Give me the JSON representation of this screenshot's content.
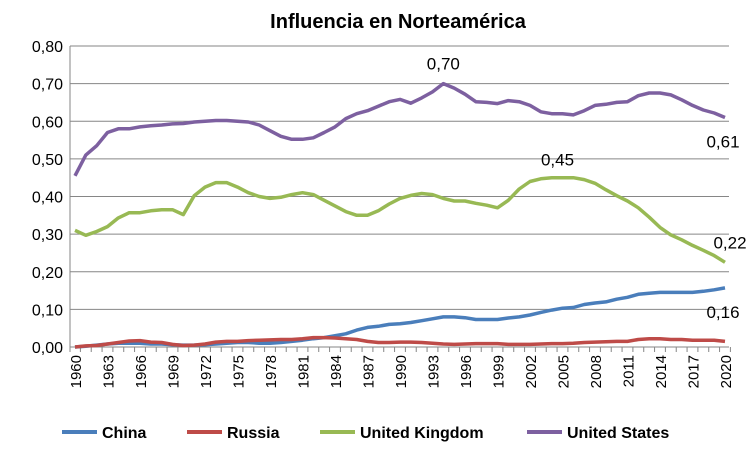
{
  "chart_data": {
    "type": "line",
    "title": "Influencia en Norteamérica",
    "xlabel": "",
    "ylabel": "",
    "ylim": [
      0,
      0.8
    ],
    "yticks": [
      "0,00",
      "0,10",
      "0,20",
      "0,30",
      "0,40",
      "0,50",
      "0,60",
      "0,70",
      "0,80"
    ],
    "xlim": [
      1960,
      2020
    ],
    "xtick_step": 3,
    "grid": true,
    "legend": "bottom",
    "x": [
      1960,
      1961,
      1962,
      1963,
      1964,
      1965,
      1966,
      1967,
      1968,
      1969,
      1970,
      1971,
      1972,
      1973,
      1974,
      1975,
      1976,
      1977,
      1978,
      1979,
      1980,
      1981,
      1982,
      1983,
      1984,
      1985,
      1986,
      1987,
      1988,
      1989,
      1990,
      1991,
      1992,
      1993,
      1994,
      1995,
      1996,
      1997,
      1998,
      1999,
      2000,
      2001,
      2002,
      2003,
      2004,
      2005,
      2006,
      2007,
      2008,
      2009,
      2010,
      2011,
      2012,
      2013,
      2014,
      2015,
      2016,
      2017,
      2018,
      2019,
      2020
    ],
    "series": [
      {
        "name": "China",
        "color": "#4a7ebb",
        "values": [
          0,
          0.002,
          0.005,
          0.008,
          0.01,
          0.01,
          0.01,
          0.008,
          0.008,
          0.006,
          0.005,
          0.005,
          0.006,
          0.008,
          0.01,
          0.012,
          0.012,
          0.01,
          0.01,
          0.012,
          0.015,
          0.018,
          0.022,
          0.025,
          0.03,
          0.035,
          0.045,
          0.052,
          0.055,
          0.06,
          0.062,
          0.065,
          0.07,
          0.075,
          0.08,
          0.08,
          0.078,
          0.073,
          0.073,
          0.073,
          0.077,
          0.08,
          0.085,
          0.092,
          0.098,
          0.103,
          0.105,
          0.113,
          0.117,
          0.12,
          0.127,
          0.132,
          0.14,
          0.143,
          0.145,
          0.145,
          0.145,
          0.145,
          0.148,
          0.152,
          0.157
        ]
      },
      {
        "name": "Russia",
        "color": "#be4b48",
        "values": [
          0,
          0.003,
          0.004,
          0.008,
          0.012,
          0.016,
          0.017,
          0.013,
          0.012,
          0.007,
          0.004,
          0.005,
          0.008,
          0.013,
          0.015,
          0.015,
          0.017,
          0.018,
          0.019,
          0.02,
          0.02,
          0.022,
          0.025,
          0.025,
          0.024,
          0.022,
          0.02,
          0.015,
          0.012,
          0.012,
          0.013,
          0.013,
          0.012,
          0.01,
          0.008,
          0.007,
          0.008,
          0.009,
          0.009,
          0.009,
          0.007,
          0.007,
          0.007,
          0.008,
          0.009,
          0.009,
          0.01,
          0.012,
          0.013,
          0.014,
          0.015,
          0.015,
          0.02,
          0.022,
          0.022,
          0.02,
          0.02,
          0.018,
          0.018,
          0.018,
          0.015
        ]
      },
      {
        "name": "United Kingdom",
        "color": "#98b954",
        "values": [
          0.31,
          0.297,
          0.307,
          0.32,
          0.343,
          0.357,
          0.357,
          0.362,
          0.365,
          0.365,
          0.352,
          0.402,
          0.425,
          0.437,
          0.437,
          0.425,
          0.41,
          0.4,
          0.395,
          0.398,
          0.405,
          0.41,
          0.405,
          0.39,
          0.375,
          0.36,
          0.35,
          0.35,
          0.362,
          0.38,
          0.395,
          0.403,
          0.408,
          0.405,
          0.395,
          0.388,
          0.388,
          0.382,
          0.377,
          0.37,
          0.39,
          0.42,
          0.44,
          0.447,
          0.45,
          0.45,
          0.45,
          0.445,
          0.435,
          0.418,
          0.402,
          0.388,
          0.37,
          0.345,
          0.318,
          0.298,
          0.285,
          0.27,
          0.257,
          0.243,
          0.225
        ]
      },
      {
        "name": "United States",
        "color": "#7d60a0",
        "values": [
          0.455,
          0.51,
          0.535,
          0.57,
          0.58,
          0.58,
          0.585,
          0.588,
          0.59,
          0.593,
          0.594,
          0.598,
          0.6,
          0.602,
          0.602,
          0.6,
          0.598,
          0.59,
          0.575,
          0.56,
          0.552,
          0.552,
          0.556,
          0.57,
          0.585,
          0.607,
          0.62,
          0.628,
          0.64,
          0.652,
          0.658,
          0.648,
          0.662,
          0.678,
          0.7,
          0.688,
          0.672,
          0.652,
          0.65,
          0.647,
          0.655,
          0.652,
          0.642,
          0.625,
          0.62,
          0.62,
          0.617,
          0.628,
          0.642,
          0.645,
          0.65,
          0.652,
          0.668,
          0.675,
          0.675,
          0.67,
          0.657,
          0.642,
          0.63,
          0.622,
          0.61
        ]
      }
    ],
    "annotations": [
      {
        "text": "0,70",
        "x": 1994,
        "y": 0.7,
        "series": "United States"
      },
      {
        "text": "0,61",
        "x": 2020,
        "y": 0.61,
        "series": "United States"
      },
      {
        "text": "0,45",
        "x": 2005,
        "y": 0.45,
        "series": "United Kingdom"
      },
      {
        "text": "0,22",
        "x": 2020,
        "y": 0.225,
        "series": "United Kingdom"
      },
      {
        "text": "0,16",
        "x": 2020,
        "y": 0.157,
        "series": "China"
      }
    ]
  }
}
